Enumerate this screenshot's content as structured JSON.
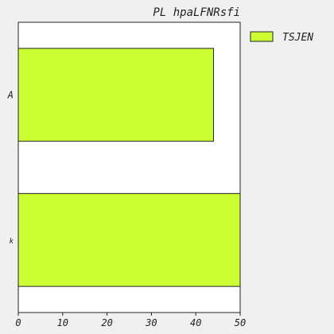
{
  "chart_data": {
    "type": "bar",
    "orientation": "horizontal",
    "title": "PL hpaLFNRsfi",
    "categories": [
      "A",
      "k"
    ],
    "series": [
      {
        "name": "TSJEN",
        "values": [
          44,
          50
        ],
        "color": "#ccff33"
      }
    ],
    "xlim": [
      0,
      50
    ],
    "xticks": [
      0,
      10,
      20,
      30,
      40,
      50
    ],
    "xlabel": "",
    "ylabel": "",
    "grid": false,
    "legend_position": "top-right-outside"
  }
}
